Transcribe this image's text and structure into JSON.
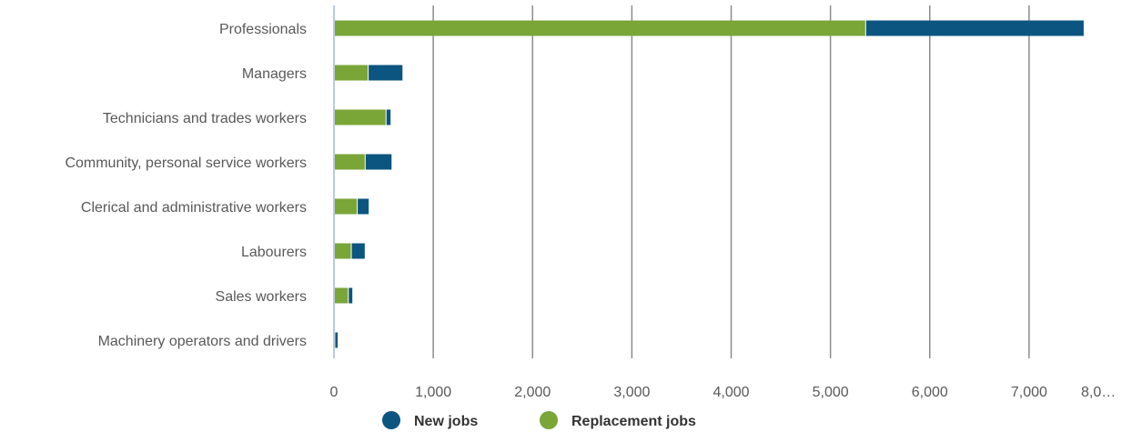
{
  "chart_data": {
    "type": "bar",
    "orientation": "horizontal",
    "stacked": true,
    "categories": [
      "Professionals",
      "Managers",
      "Technicians and trades workers",
      "Community, personal service workers",
      "Clerical and administrative workers",
      "Labourers",
      "Sales workers",
      "Machinery operators and drivers"
    ],
    "series": [
      {
        "name": "Replacement jobs",
        "color": "#7aa537",
        "values": [
          5350,
          340,
          520,
          310,
          230,
          170,
          140,
          10
        ]
      },
      {
        "name": "New jobs",
        "color": "#0b5580",
        "values": [
          2200,
          350,
          50,
          270,
          120,
          140,
          45,
          20
        ]
      }
    ],
    "xlim": [
      0,
      8000
    ],
    "x_ticks": [
      "0",
      "1,000",
      "2,000",
      "3,000",
      "4,000",
      "5,000",
      "6,000",
      "7,000",
      "8,0…"
    ],
    "x_tick_values": [
      0,
      1000,
      2000,
      3000,
      4000,
      5000,
      6000,
      7000,
      8000
    ],
    "grid": true,
    "legend": {
      "position": "bottom",
      "entries": [
        "New jobs",
        "Replacement jobs"
      ]
    }
  }
}
